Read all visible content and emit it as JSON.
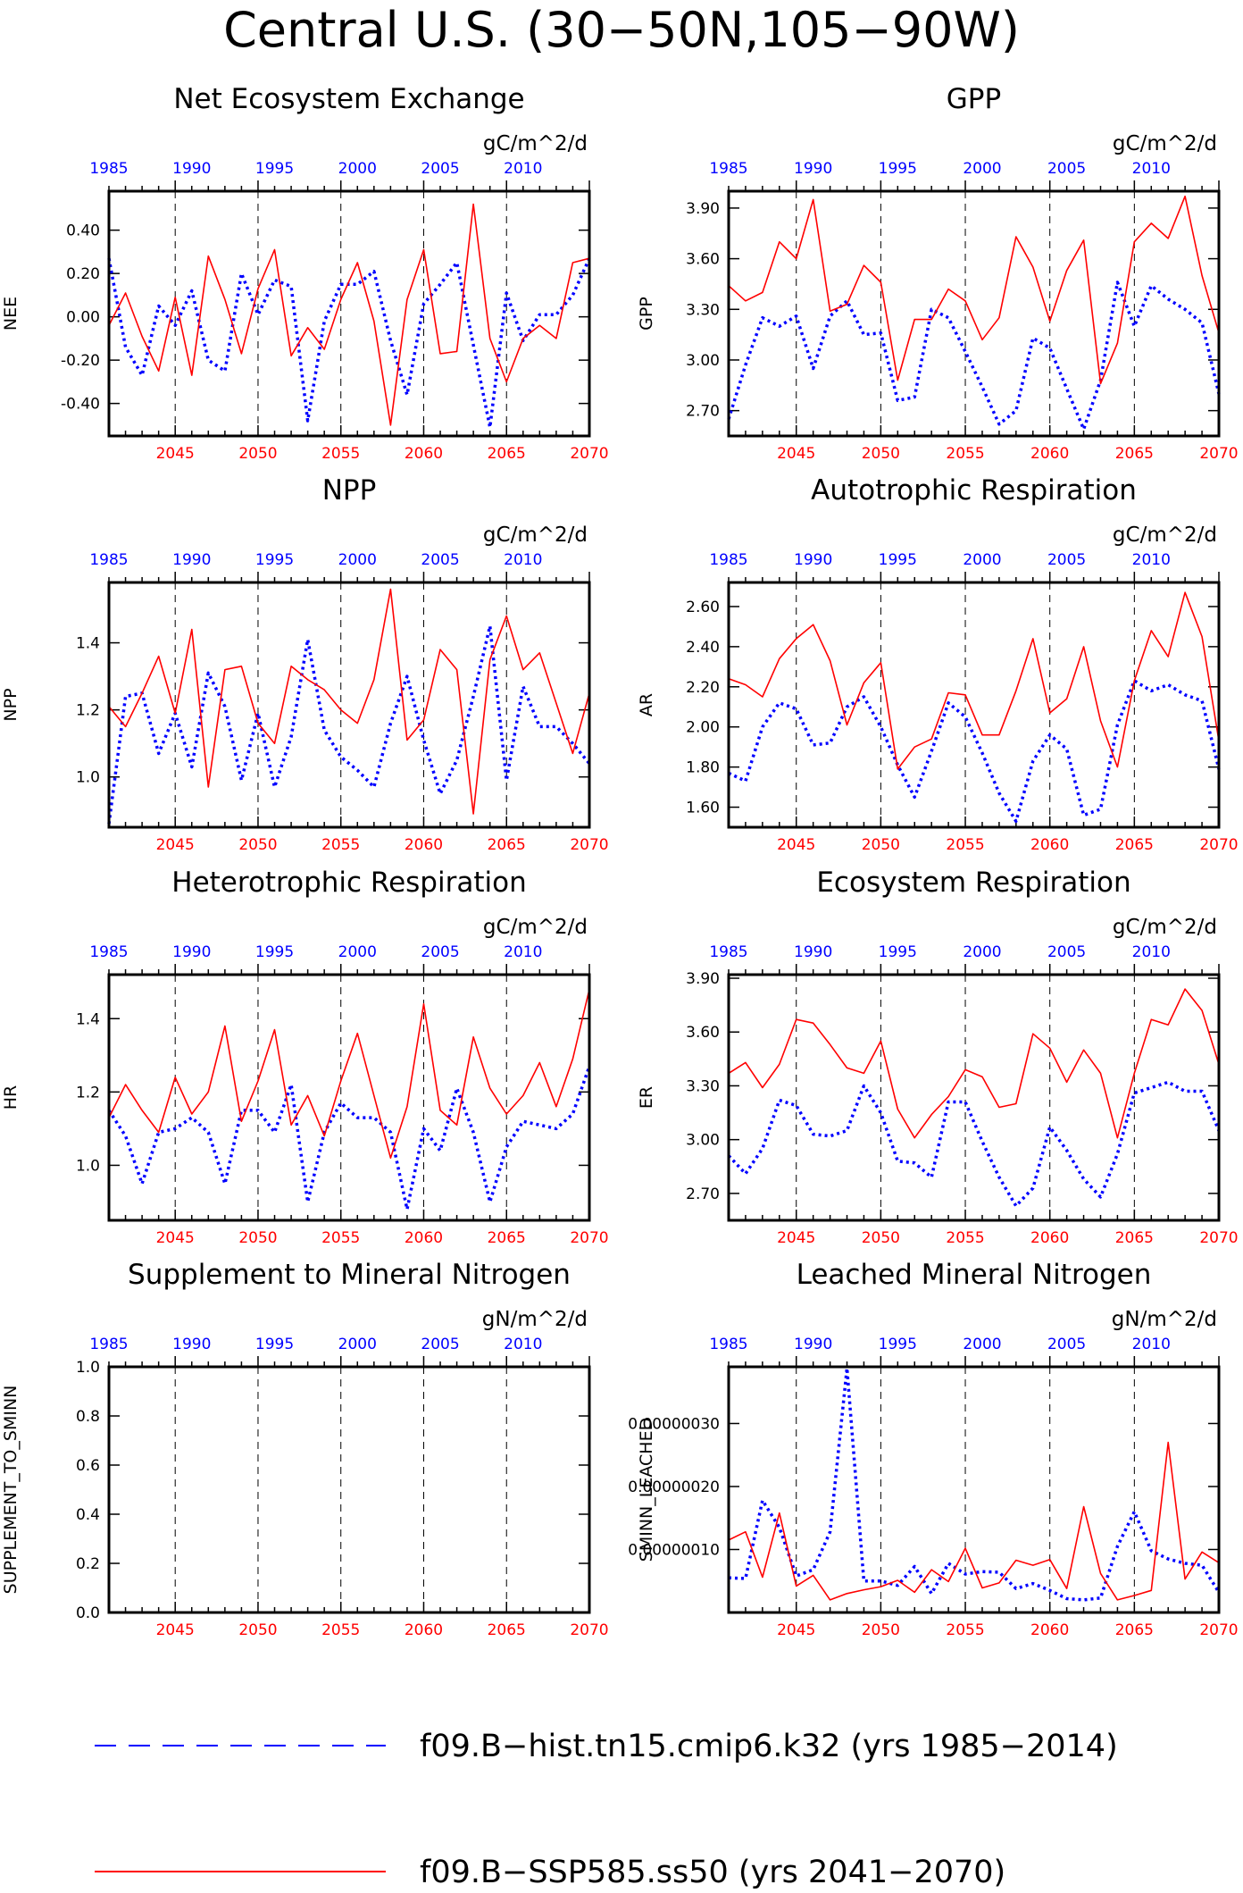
{
  "title": "Central U.S. (30−50N,105−90W)",
  "colors": {
    "hist": "#0000ff",
    "ssp": "#ff0000",
    "frame": "#000000"
  },
  "bottom_axis": {
    "color": "#ff0000",
    "labels": [
      "2045",
      "2050",
      "2055",
      "2060",
      "2065",
      "2070"
    ],
    "range": [
      2041,
      2070
    ]
  },
  "top_axis": {
    "color": "#0000ff",
    "labels": [
      "1985",
      "1990",
      "1995",
      "2000",
      "2005",
      "2010"
    ],
    "range": [
      1985,
      2014
    ]
  },
  "legend": [
    {
      "label": "f09.B−hist.tn15.cmip6.k32 (yrs 1985−2014)",
      "color": "#0000ff",
      "style": "dashed"
    },
    {
      "label": "f09.B−SSP585.ss50 (yrs 2041−2070)",
      "color": "#ff0000",
      "style": "solid"
    }
  ],
  "chart_data": [
    {
      "type": "line",
      "title": "Net Ecosystem Exchange",
      "units": "gC/m^2/d",
      "ylabel": "NEE",
      "ylim": [
        -0.55,
        0.58
      ],
      "yticks": [
        -0.4,
        -0.2,
        0.0,
        0.2,
        0.4
      ],
      "ytick_labels": [
        "-0.40",
        "-0.20",
        "0.00",
        "0.20",
        "0.40"
      ],
      "series": [
        {
          "values": [
            0.27,
            -0.14,
            -0.27,
            0.05,
            -0.04,
            0.12,
            -0.2,
            -0.25,
            0.2,
            0.01,
            0.17,
            0.14,
            -0.48,
            -0.02,
            0.15,
            0.15,
            0.21,
            -0.11,
            -0.36,
            0.06,
            0.15,
            0.25,
            -0.13,
            -0.51,
            0.11,
            -0.11,
            0.01,
            0.01,
            0.1,
            0.27
          ]
        },
        {
          "values": [
            -0.04,
            0.11,
            -0.09,
            -0.25,
            0.09,
            -0.27,
            0.28,
            0.08,
            -0.17,
            0.13,
            0.31,
            -0.18,
            -0.05,
            -0.15,
            0.08,
            0.25,
            -0.02,
            -0.5,
            0.08,
            0.31,
            -0.17,
            -0.16,
            0.52,
            -0.1,
            -0.3,
            -0.1,
            -0.04,
            -0.1,
            0.25,
            0.27
          ]
        }
      ]
    },
    {
      "type": "line",
      "title": "GPP",
      "units": "gC/m^2/d",
      "ylabel": "GPP",
      "ylim": [
        2.55,
        4.0
      ],
      "yticks": [
        2.7,
        3.0,
        3.3,
        3.6,
        3.9
      ],
      "ytick_labels": [
        "2.70",
        "3.00",
        "3.30",
        "3.60",
        "3.90"
      ],
      "series": [
        {
          "values": [
            2.65,
            2.97,
            3.25,
            3.2,
            3.26,
            2.95,
            3.26,
            3.35,
            3.15,
            3.16,
            2.76,
            2.78,
            3.3,
            3.25,
            3.05,
            2.84,
            2.62,
            2.7,
            3.13,
            3.07,
            2.83,
            2.59,
            2.88,
            3.46,
            3.2,
            3.44,
            3.36,
            3.3,
            3.22,
            2.8
          ]
        },
        {
          "values": [
            3.44,
            3.35,
            3.4,
            3.7,
            3.6,
            3.95,
            3.29,
            3.33,
            3.56,
            3.46,
            2.88,
            3.24,
            3.24,
            3.42,
            3.35,
            3.12,
            3.25,
            3.73,
            3.55,
            3.23,
            3.53,
            3.71,
            2.86,
            3.1,
            3.7,
            3.81,
            3.72,
            3.97,
            3.5,
            3.16
          ]
        }
      ]
    },
    {
      "type": "line",
      "title": "NPP",
      "units": "gC/m^2/d",
      "ylabel": "NPP",
      "ylim": [
        0.85,
        1.58
      ],
      "yticks": [
        1.0,
        1.2,
        1.4
      ],
      "ytick_labels": [
        "1.0",
        "1.2",
        "1.4"
      ],
      "series": [
        {
          "values": [
            0.86,
            1.24,
            1.25,
            1.07,
            1.19,
            1.03,
            1.31,
            1.21,
            0.99,
            1.19,
            0.97,
            1.12,
            1.41,
            1.14,
            1.06,
            1.02,
            0.97,
            1.16,
            1.3,
            1.11,
            0.95,
            1.05,
            1.24,
            1.45,
            0.99,
            1.27,
            1.15,
            1.15,
            1.1,
            1.04
          ]
        },
        {
          "values": [
            1.21,
            1.15,
            1.25,
            1.36,
            1.19,
            1.44,
            0.97,
            1.32,
            1.33,
            1.16,
            1.1,
            1.33,
            1.29,
            1.26,
            1.2,
            1.16,
            1.29,
            1.56,
            1.11,
            1.17,
            1.38,
            1.32,
            0.89,
            1.35,
            1.48,
            1.32,
            1.37,
            1.22,
            1.07,
            1.25
          ]
        }
      ]
    },
    {
      "type": "line",
      "title": "Autotrophic Respiration",
      "units": "gC/m^2/d",
      "ylabel": "AR",
      "ylim": [
        1.5,
        2.72
      ],
      "yticks": [
        1.6,
        1.8,
        2.0,
        2.2,
        2.4,
        2.6
      ],
      "ytick_labels": [
        "1.60",
        "1.80",
        "2.00",
        "2.20",
        "2.40",
        "2.60"
      ],
      "series": [
        {
          "values": [
            1.77,
            1.73,
            2.0,
            2.12,
            2.09,
            1.91,
            1.92,
            2.1,
            2.15,
            2.0,
            1.81,
            1.65,
            1.88,
            2.12,
            2.05,
            1.87,
            1.67,
            1.53,
            1.83,
            1.96,
            1.89,
            1.56,
            1.59,
            2.01,
            2.23,
            2.18,
            2.21,
            2.16,
            2.13,
            1.79
          ]
        },
        {
          "values": [
            2.24,
            2.21,
            2.15,
            2.34,
            2.44,
            2.51,
            2.33,
            2.01,
            2.22,
            2.32,
            1.79,
            1.9,
            1.94,
            2.17,
            2.16,
            1.96,
            1.96,
            2.18,
            2.44,
            2.07,
            2.14,
            2.4,
            2.03,
            1.8,
            2.23,
            2.48,
            2.35,
            2.67,
            2.45,
            1.93
          ]
        }
      ]
    },
    {
      "type": "line",
      "title": "Heterotrophic Respiration",
      "units": "gC/m^2/d",
      "ylabel": "HR",
      "ylim": [
        0.85,
        1.52
      ],
      "yticks": [
        1.0,
        1.2,
        1.4
      ],
      "ytick_labels": [
        "1.0",
        "1.2",
        "1.4"
      ],
      "series": [
        {
          "values": [
            1.15,
            1.08,
            0.95,
            1.09,
            1.1,
            1.13,
            1.09,
            0.95,
            1.15,
            1.15,
            1.09,
            1.22,
            0.9,
            1.09,
            1.17,
            1.13,
            1.13,
            1.09,
            0.88,
            1.1,
            1.04,
            1.21,
            1.09,
            0.9,
            1.05,
            1.12,
            1.11,
            1.1,
            1.14,
            1.27
          ]
        },
        {
          "values": [
            1.13,
            1.22,
            1.15,
            1.09,
            1.24,
            1.14,
            1.2,
            1.38,
            1.12,
            1.23,
            1.37,
            1.11,
            1.19,
            1.08,
            1.23,
            1.36,
            1.19,
            1.02,
            1.16,
            1.44,
            1.15,
            1.11,
            1.35,
            1.21,
            1.14,
            1.19,
            1.28,
            1.16,
            1.29,
            1.48
          ]
        }
      ]
    },
    {
      "type": "line",
      "title": "Ecosystem Respiration",
      "units": "gC/m^2/d",
      "ylabel": "ER",
      "ylim": [
        2.55,
        3.92
      ],
      "yticks": [
        2.7,
        3.0,
        3.3,
        3.6,
        3.9
      ],
      "ytick_labels": [
        "2.70",
        "3.00",
        "3.30",
        "3.60",
        "3.90"
      ],
      "series": [
        {
          "values": [
            2.91,
            2.81,
            2.95,
            3.22,
            3.19,
            3.03,
            3.02,
            3.05,
            3.3,
            3.15,
            2.88,
            2.87,
            2.79,
            3.21,
            3.21,
            2.99,
            2.79,
            2.63,
            2.73,
            3.07,
            2.94,
            2.78,
            2.68,
            2.92,
            3.26,
            3.29,
            3.32,
            3.27,
            3.27,
            3.05
          ]
        },
        {
          "values": [
            3.37,
            3.43,
            3.29,
            3.42,
            3.67,
            3.65,
            3.53,
            3.4,
            3.37,
            3.55,
            3.17,
            3.01,
            3.14,
            3.24,
            3.39,
            3.35,
            3.18,
            3.2,
            3.59,
            3.51,
            3.32,
            3.5,
            3.37,
            3.01,
            3.37,
            3.67,
            3.64,
            3.84,
            3.72,
            3.42
          ]
        }
      ]
    },
    {
      "type": "line",
      "title": "Supplement to Mineral Nitrogen",
      "units": "gN/m^2/d",
      "ylabel": "SUPPLEMENT_TO_SMINN",
      "ylim": [
        0.0,
        1.0
      ],
      "yticks": [
        0.0,
        0.2,
        0.4,
        0.6,
        0.8,
        1.0
      ],
      "ytick_labels": [
        "0.0",
        "0.2",
        "0.4",
        "0.6",
        "0.8",
        "1.0"
      ],
      "series": [
        {
          "values": []
        },
        {
          "values": []
        }
      ]
    },
    {
      "type": "line",
      "title": "Leached Mineral Nitrogen",
      "units": "gN/m^2/d",
      "ylabel": "SMINN_LEACHED",
      "ylim": [
        0.0,
        3.9e-07
      ],
      "yticks": [
        1e-07,
        2e-07,
        3e-07
      ],
      "ytick_labels": [
        "0.00000010",
        "0.00000020",
        "0.00000030"
      ],
      "series": [
        {
          "values": [
            5.5e-08,
            5.4e-08,
            1.78e-07,
            1.35e-07,
            5.8e-08,
            6.8e-08,
            1.28e-07,
            3.88e-07,
            5e-08,
            5e-08,
            4.3e-08,
            7.3e-08,
            3e-08,
            7.8e-08,
            6.1e-08,
            6.5e-08,
            6.4e-08,
            3.8e-08,
            4.6e-08,
            3.5e-08,
            2.2e-08,
            2e-08,
            2.3e-08,
            1.05e-07,
            1.6e-07,
            9.8e-08,
            8.5e-08,
            7.8e-08,
            7.5e-08,
            3.2e-08
          ]
        },
        {
          "values": [
            1.15e-07,
            1.28e-07,
            5.6e-08,
            1.58e-07,
            4.2e-08,
            5.9e-08,
            2e-08,
            3e-08,
            3.6e-08,
            4.1e-08,
            5.1e-08,
            3.2e-08,
            6.8e-08,
            4.9e-08,
            1.02e-07,
            3.9e-08,
            4.7e-08,
            8.3e-08,
            7.5e-08,
            8.4e-08,
            3.8e-08,
            1.68e-07,
            6.2e-08,
            2e-08,
            2.7e-08,
            3.5e-08,
            2.7e-07,
            5.3e-08,
            9.6e-08,
            7.9e-08
          ]
        }
      ]
    }
  ]
}
